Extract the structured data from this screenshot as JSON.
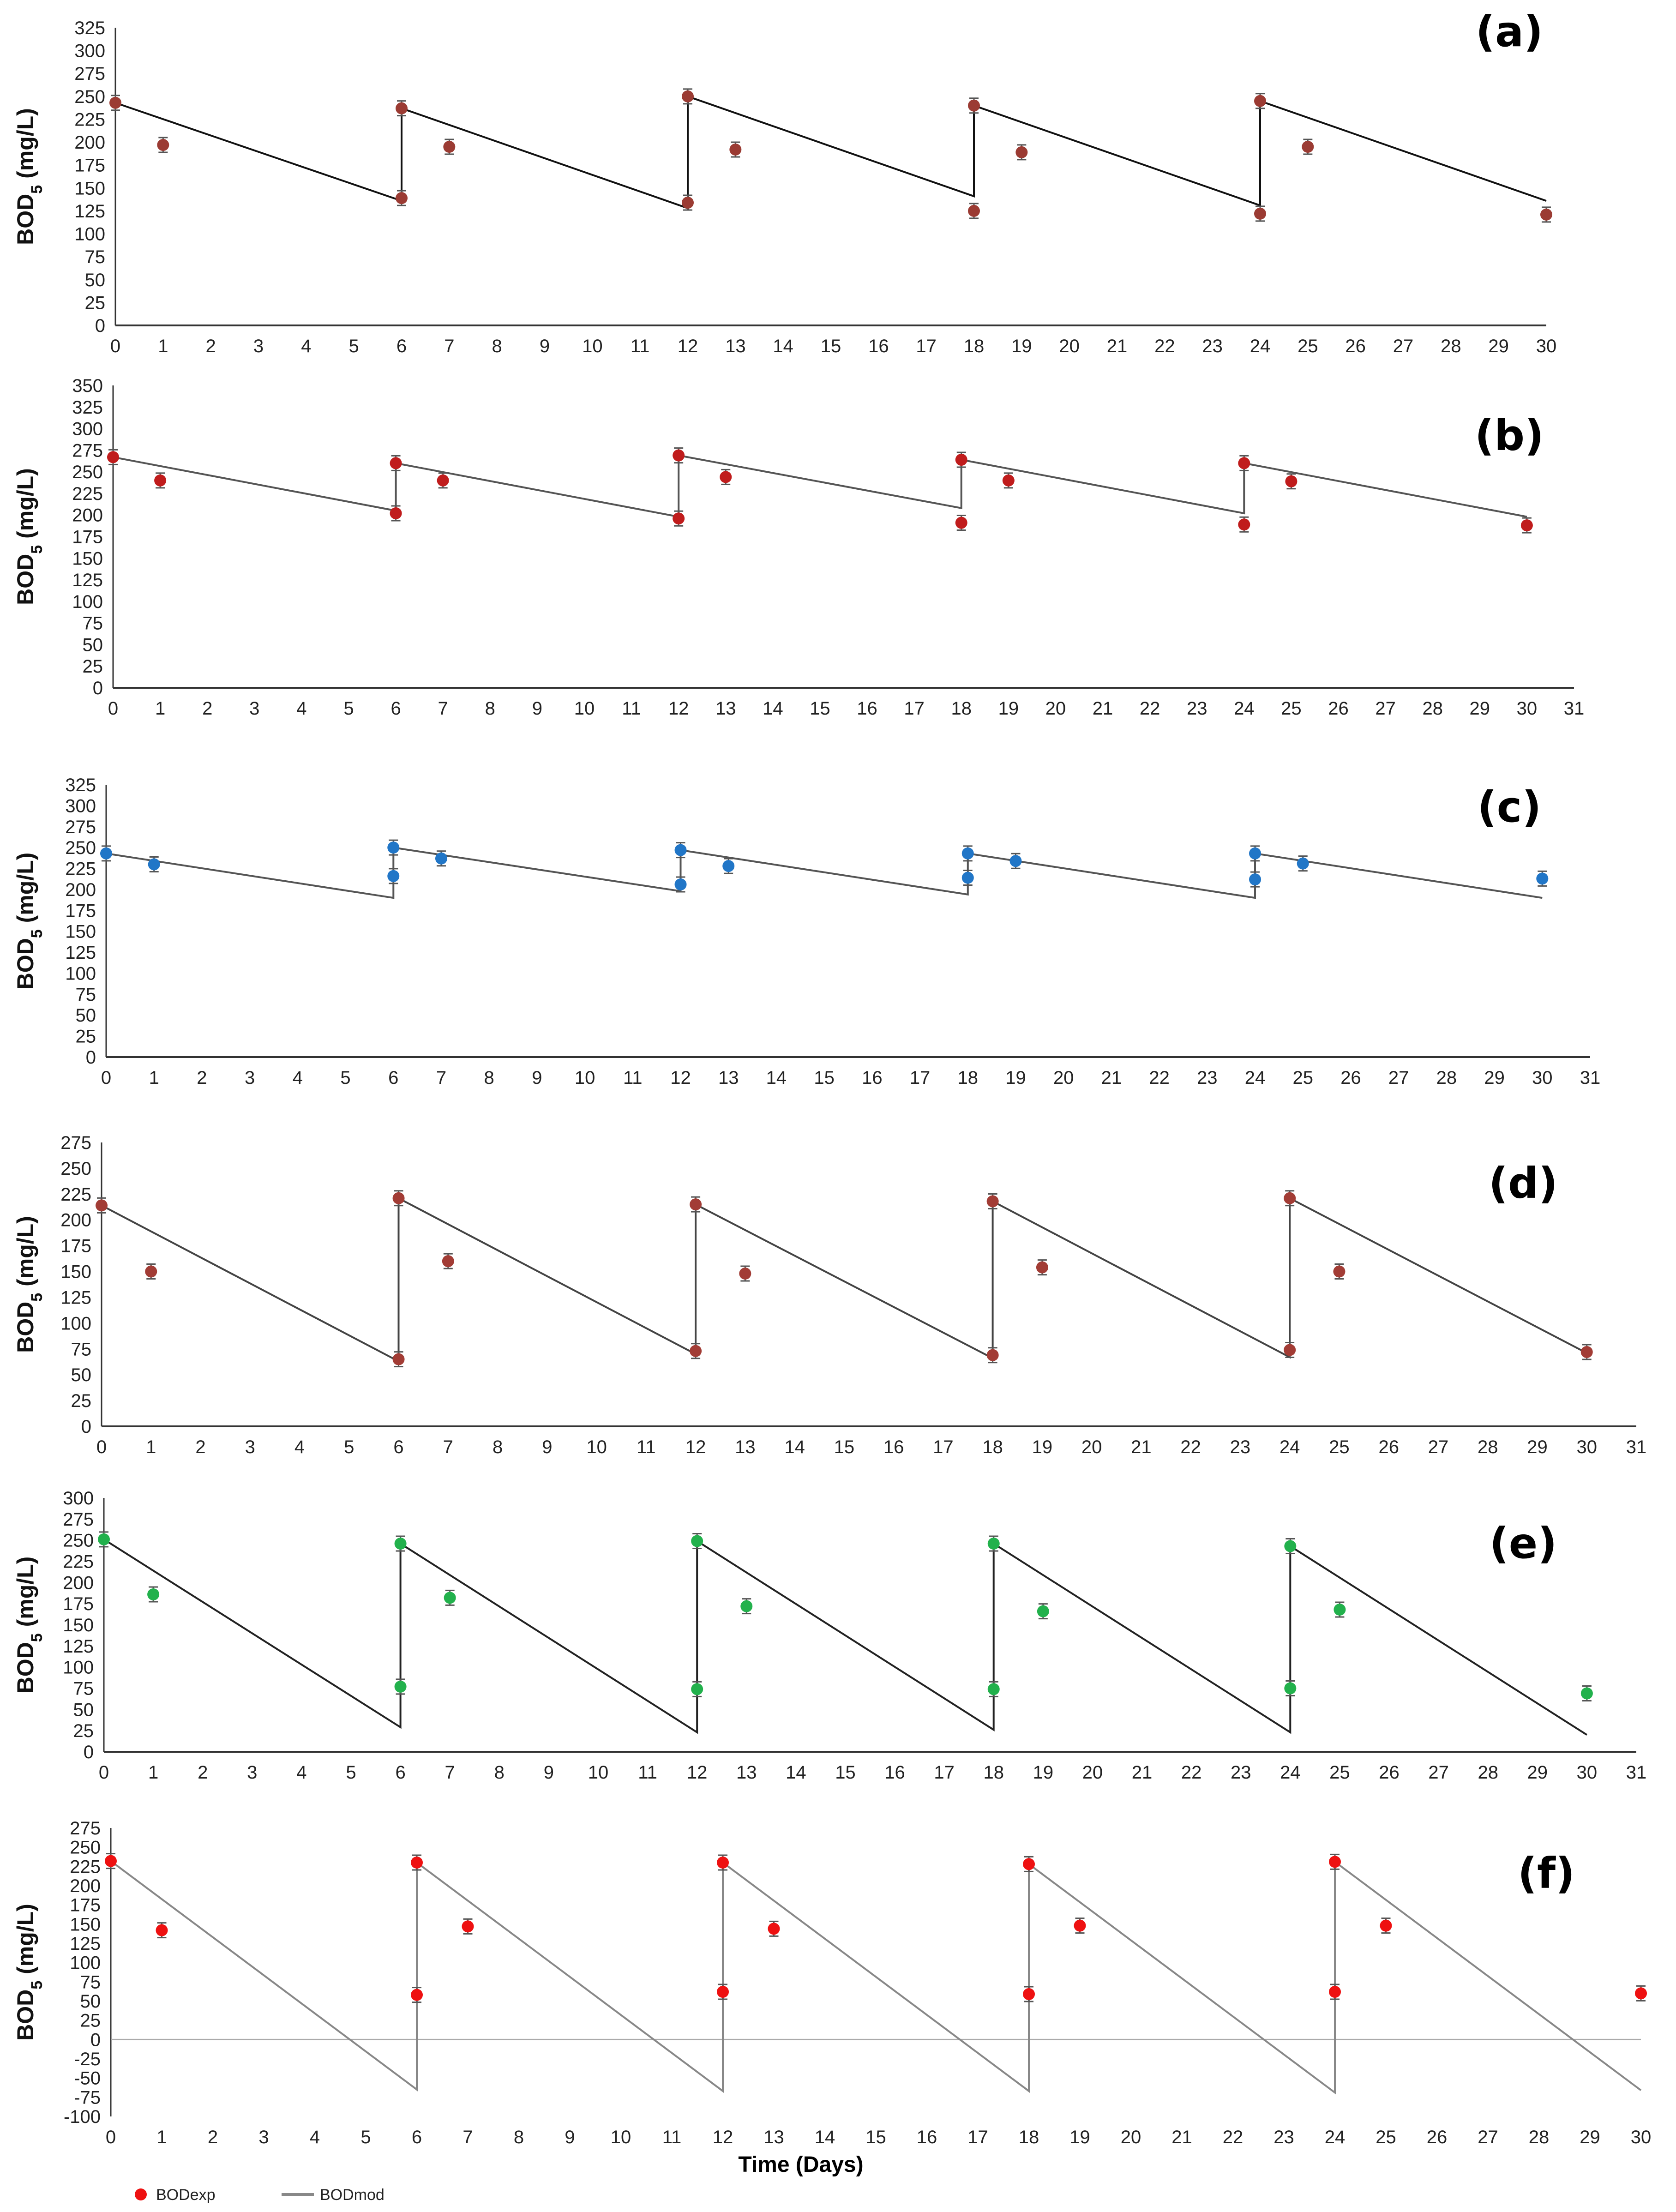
{
  "x_axis_title": "Time (Days)",
  "legend": {
    "exp_label": "BODexp",
    "mod_label": "BODmod",
    "exp_color": "#ee1111",
    "mod_color": "#888888"
  },
  "chart_data": [
    {
      "type": "line",
      "panel_label": "(a)",
      "ylabel": "BOD5 (mg/L)",
      "ylim": [
        0,
        325
      ],
      "ystep": 25,
      "xmax_tick": 30,
      "marker_color": "#9b3b33",
      "line_color": "#111111",
      "model": {
        "x": [
          0,
          6,
          6,
          12,
          12,
          18,
          18,
          24,
          24,
          30
        ],
        "y": [
          243,
          136,
          237,
          128,
          250,
          141,
          240,
          131,
          245,
          136
        ]
      },
      "experimental": {
        "x": [
          0,
          1,
          6,
          6,
          7,
          12,
          12,
          13,
          18,
          18,
          19,
          24,
          24,
          25,
          30
        ],
        "y": [
          243,
          197,
          139,
          237,
          195,
          134,
          250,
          192,
          125,
          240,
          189,
          122,
          245,
          195,
          121
        ]
      }
    },
    {
      "type": "line",
      "panel_label": "(b)",
      "ylabel": "BOD5 (mg/L)",
      "ylim": [
        0,
        350
      ],
      "ystep": 25,
      "xmax_tick": 31,
      "marker_color": "#c01c1c",
      "line_color": "#555555",
      "model": {
        "x": [
          0,
          6,
          6,
          12,
          12,
          18,
          18,
          24,
          24,
          30
        ],
        "y": [
          267,
          205,
          260,
          198,
          269,
          208,
          264,
          202,
          260,
          198
        ]
      },
      "experimental": {
        "x": [
          0,
          1,
          6,
          6,
          7,
          12,
          12,
          13,
          18,
          18,
          19,
          24,
          24,
          25,
          30
        ],
        "y": [
          267,
          240,
          202,
          260,
          240,
          196,
          269,
          244,
          191,
          264,
          240,
          189,
          260,
          239,
          188
        ]
      }
    },
    {
      "type": "line",
      "panel_label": "(c)",
      "ylabel": "BOD5 (mg/L)",
      "ylim": [
        0,
        325
      ],
      "ystep": 25,
      "xmax_tick": 31,
      "marker_color": "#2176c7",
      "line_color": "#555555",
      "model": {
        "x": [
          0,
          6,
          6,
          12,
          12,
          18,
          18,
          24,
          24,
          30
        ],
        "y": [
          243,
          190,
          250,
          198,
          247,
          194,
          243,
          190,
          243,
          190
        ]
      },
      "experimental": {
        "x": [
          0,
          1,
          6,
          6,
          7,
          12,
          12,
          13,
          18,
          18,
          19,
          24,
          24,
          25,
          30
        ],
        "y": [
          243,
          230,
          216,
          250,
          237,
          206,
          247,
          228,
          214,
          243,
          234,
          212,
          243,
          231,
          213
        ]
      }
    },
    {
      "type": "line",
      "panel_label": "(d)",
      "ylabel": "BOD5 (mg/L)",
      "ylim": [
        0,
        275
      ],
      "ystep": 25,
      "xmax_tick": 31,
      "marker_color": "#a23c35",
      "line_color": "#444444",
      "model": {
        "x": [
          0,
          6,
          6,
          12,
          12,
          18,
          18,
          24,
          24,
          30
        ],
        "y": [
          214,
          63,
          221,
          70,
          215,
          66,
          218,
          67,
          221,
          71
        ]
      },
      "experimental": {
        "x": [
          0,
          1,
          6,
          6,
          7,
          12,
          12,
          13,
          18,
          18,
          19,
          24,
          24,
          25,
          30
        ],
        "y": [
          214,
          150,
          65,
          221,
          160,
          73,
          215,
          148,
          69,
          218,
          154,
          74,
          221,
          150,
          72
        ]
      }
    },
    {
      "type": "line",
      "panel_label": "(e)",
      "ylabel": "BOD5 (mg/L)",
      "ylim": [
        0,
        300
      ],
      "ystep": 25,
      "xmax_tick": 31,
      "marker_color": "#22b14c",
      "line_color": "#222222",
      "model": {
        "x": [
          0,
          6,
          6,
          12,
          12,
          18,
          18,
          24,
          24,
          30
        ],
        "y": [
          251,
          29,
          246,
          23,
          249,
          26,
          246,
          23,
          243,
          20
        ]
      },
      "experimental": {
        "x": [
          0,
          1,
          6,
          6,
          7,
          12,
          12,
          13,
          18,
          18,
          19,
          24,
          24,
          25,
          30
        ],
        "y": [
          251,
          186,
          77,
          246,
          182,
          74,
          249,
          172,
          74,
          246,
          166,
          75,
          243,
          168,
          69
        ]
      }
    },
    {
      "type": "line",
      "panel_label": "(f)",
      "ylabel": "BOD5 (mg/L)",
      "ylim": [
        -100,
        275
      ],
      "ystep": 25,
      "xmax_tick": 30,
      "marker_color": "#ee1111",
      "line_color": "#888888",
      "model": {
        "x": [
          0,
          6,
          6,
          12,
          12,
          18,
          18,
          24,
          24,
          30
        ],
        "y": [
          232,
          -65,
          230,
          -67,
          230,
          -67,
          228,
          -69,
          231,
          -66
        ]
      },
      "experimental": {
        "x": [
          0,
          1,
          6,
          6,
          7,
          12,
          12,
          13,
          18,
          18,
          19,
          24,
          24,
          25,
          30
        ],
        "y": [
          232,
          142,
          58,
          230,
          147,
          62,
          230,
          144,
          59,
          228,
          148,
          62,
          231,
          148,
          60
        ]
      }
    }
  ]
}
